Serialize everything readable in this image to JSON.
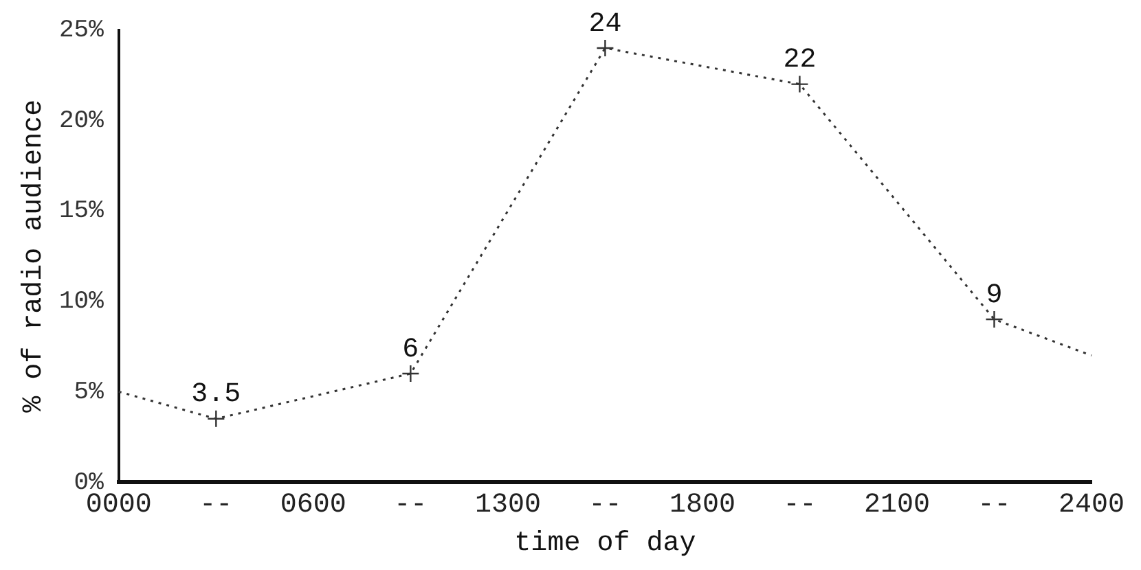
{
  "chart_data": {
    "type": "line",
    "xlabel": "time of day",
    "ylabel": "% of radio audience",
    "categories": [
      "0000",
      "--",
      "0600",
      "--",
      "1300",
      "--",
      "1800",
      "--",
      "2100",
      "--",
      "2400"
    ],
    "series": [
      {
        "color": "#333333",
        "values": [
          5,
          3.5,
          null,
          6,
          null,
          24,
          null,
          22,
          null,
          9,
          7
        ],
        "value_labels": [
          null,
          "3.5",
          null,
          "6",
          null,
          "24",
          null,
          "22",
          null,
          "9",
          null
        ]
      }
    ],
    "ylim": [
      0,
      25
    ],
    "yticks": [
      {
        "value": 0,
        "label": "0%"
      },
      {
        "value": 5,
        "label": "5%"
      },
      {
        "value": 10,
        "label": "10%"
      },
      {
        "value": 15,
        "label": "15%"
      },
      {
        "value": 20,
        "label": "20%"
      },
      {
        "value": 25,
        "label": "25%"
      }
    ],
    "grid": false,
    "legend": false,
    "marker": "cross",
    "line_style": "dotted"
  }
}
